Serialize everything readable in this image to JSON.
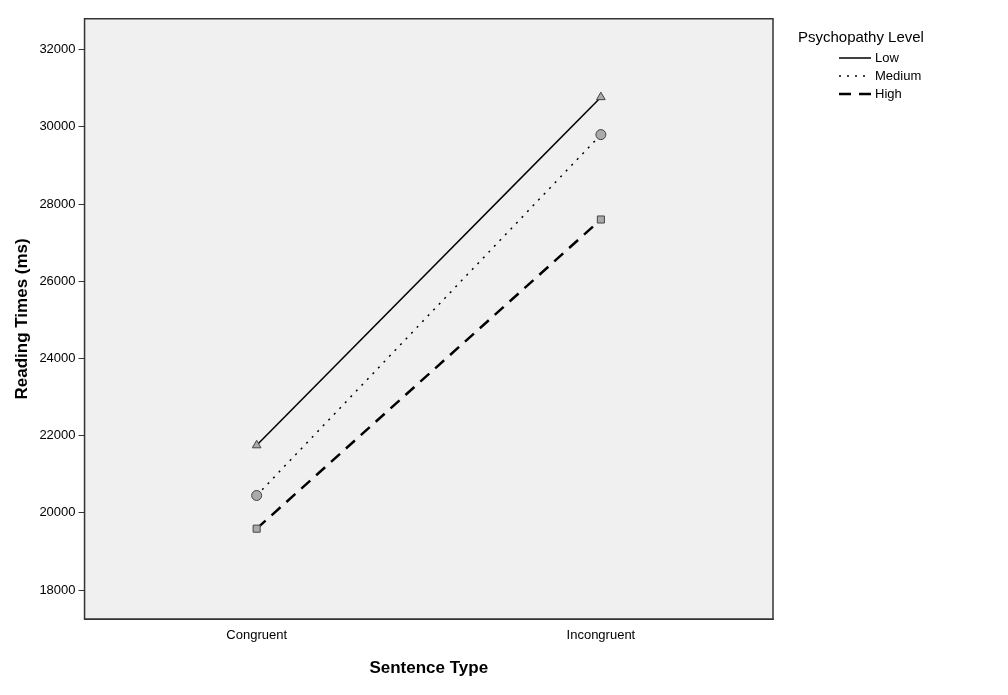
{
  "chart_data": {
    "type": "line",
    "xlabel": "Sentence Type",
    "ylabel": "Reading Times (ms)",
    "legend_title": "Psychopathy Level",
    "categories": [
      "Congruent",
      "Incongruent"
    ],
    "ylim": [
      17250,
      32800
    ],
    "yticks": [
      18000,
      20000,
      22000,
      24000,
      26000,
      28000,
      30000,
      32000
    ],
    "grid": false,
    "legend": "top right",
    "series": [
      {
        "name": "Low",
        "color": "#000000",
        "values": [
          21750,
          30770
        ],
        "marker": "triangle",
        "line_style": "solid"
      },
      {
        "name": "Medium",
        "color": "#000000",
        "values": [
          20450,
          29800
        ],
        "marker": "circle",
        "line_style": "dotted"
      },
      {
        "name": "High",
        "color": "#000000",
        "values": [
          19590,
          27600
        ],
        "marker": "square",
        "line_style": "dashed"
      }
    ]
  }
}
